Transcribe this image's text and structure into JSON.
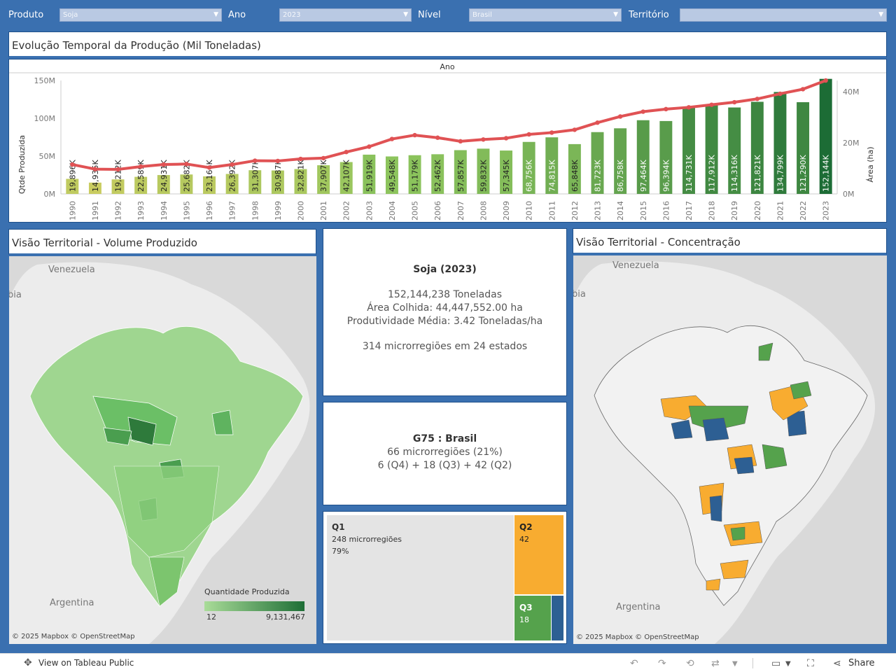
{
  "filters": {
    "produto_label": "Produto",
    "produto_value": "Soja",
    "ano_label": "Ano",
    "ano_value": "2023",
    "nivel_label": "Nível",
    "nivel_value": "Brasil",
    "territorio_label": "Território",
    "territorio_value": ""
  },
  "timeline": {
    "title": "Evolução Temporal da Produção (Mil Toneladas)",
    "header": "Ano"
  },
  "chart_data": {
    "type": "bar",
    "categories": [
      "1990",
      "1991",
      "1992",
      "1993",
      "1994",
      "1995",
      "1996",
      "1997",
      "1998",
      "1999",
      "2000",
      "2001",
      "2002",
      "2003",
      "2004",
      "2005",
      "2006",
      "2007",
      "2008",
      "2009",
      "2010",
      "2011",
      "2012",
      "2013",
      "2014",
      "2015",
      "2016",
      "2017",
      "2018",
      "2019",
      "2020",
      "2021",
      "2022",
      "2023"
    ],
    "values": [
      19896,
      14935,
      19212,
      22589,
      24931,
      25682,
      23166,
      26392,
      31307,
      30987,
      32821,
      37907,
      42107,
      51919,
      49548,
      51179,
      52462,
      57857,
      59832,
      57345,
      68756,
      74815,
      65848,
      81723,
      86758,
      97464,
      96394,
      114731,
      117912,
      114316,
      121821,
      134799,
      121290,
      152144
    ],
    "labels": [
      "19,896K",
      "14,935K",
      "19,212K",
      "22,589K",
      "24,931K",
      "25,682K",
      "23,166K",
      "26,392K",
      "31,307K",
      "30,987K",
      "32,821K",
      "37,907K",
      "42,107K",
      "51,919K",
      "49,548K",
      "51,179K",
      "52,462K",
      "57,857K",
      "59,832K",
      "57,345K",
      "68,756K",
      "74,815K",
      "65,848K",
      "81,723K",
      "86,758K",
      "97,464K",
      "96,394K",
      "114,731K",
      "117,912K",
      "114,316K",
      "121,821K",
      "134,799K",
      "121,290K",
      "152,144K"
    ],
    "series": [
      {
        "name": "Qtde Produzida",
        "unit": "mil toneladas",
        "axis": "left"
      },
      {
        "name": "Área (ha)",
        "axis": "right",
        "values": [
          11.5,
          9.7,
          9.6,
          10.7,
          11.5,
          11.7,
          10.3,
          11.5,
          13.0,
          12.9,
          13.7,
          14.0,
          16.4,
          18.5,
          21.5,
          23.0,
          22.0,
          20.6,
          21.3,
          21.8,
          23.3,
          24.0,
          25.1,
          27.9,
          30.3,
          32.2,
          33.2,
          33.9,
          34.9,
          35.9,
          37.2,
          39.2,
          41.0,
          44.4
        ]
      }
    ],
    "yticks_left": [
      "150M",
      "100M",
      "50M",
      "0M"
    ],
    "yticks_right": [
      "40M",
      "20M",
      "0M"
    ],
    "ylim_left": [
      0,
      150000
    ],
    "ylim_right": [
      0,
      44.4
    ],
    "xlabel": "Ano",
    "ylabel": "Qtde Produzida",
    "ylabel_right": "Área (ha)",
    "colors": {
      "line": "#e05254",
      "bar_low": "#e3cf62",
      "bar_mid": "#8dc45d",
      "bar_high": "#1e6e36"
    }
  },
  "volume_map": {
    "title": "Visão Territorial - Volume Produzido",
    "country_labels": [
      "Venezuela",
      "Argentina",
      "bia"
    ],
    "legend_title": "Quantidade Produzida",
    "legend_min": "12",
    "legend_max": "9,131,467",
    "attribution": "© 2025 Mapbox  © OpenStreetMap"
  },
  "summary": {
    "heading": "Soja (2023)",
    "line1": "152,144,238 Toneladas",
    "line2": "Área Colhida: 44,447,552.00 ha",
    "line3": "Produtividade Média: 3.42 Toneladas/ha",
    "line4": "314 microrregiões em 24 estados"
  },
  "g75": {
    "heading": "G75 : Brasil",
    "line1": "66 microrregiões (21%)",
    "line2": "6 (Q4) +  18 (Q3) + 42 (Q2)"
  },
  "treemap": {
    "q1_title": "Q1",
    "q1_line1": "248 microrregiões",
    "q1_line2": "79%",
    "q2_title": "Q2",
    "q2_value": "42",
    "q3_title": "Q3",
    "q3_value": "18",
    "colors": {
      "q1": "#e4e4e4",
      "q2": "#f8ac30",
      "q3": "#55a24c",
      "q4": "#2d5f93"
    }
  },
  "concentration_map": {
    "title": "Visão Territorial - Concentração",
    "country_labels": [
      "Venezuela",
      "Argentina",
      "bia"
    ],
    "attribution": "© 2025 Mapbox  © OpenStreetMap"
  },
  "footer": {
    "view_label": "View on Tableau Public",
    "share_label": "Share"
  }
}
